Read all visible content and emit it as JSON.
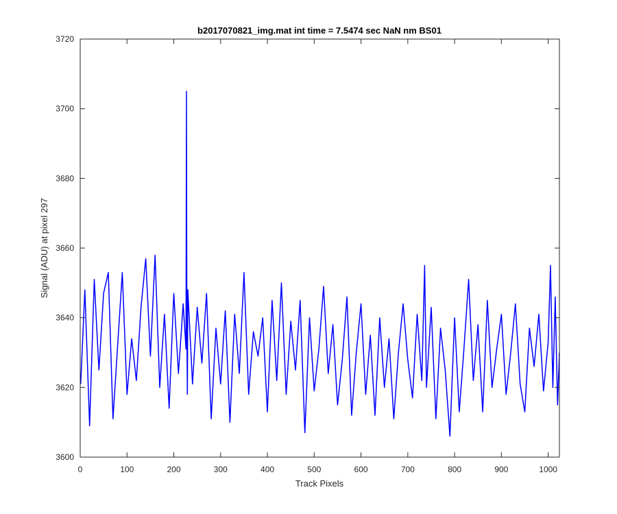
{
  "chart_data": {
    "type": "line",
    "title": "b2017070821_img.mat int time = 7.5474 sec  NaN nm BS01",
    "xlabel": "Track Pixels",
    "ylabel": "Signal (ADU) at pixel 297",
    "xlim": [
      0,
      1024
    ],
    "ylim": [
      3600,
      3720
    ],
    "xticks": [
      0,
      100,
      200,
      300,
      400,
      500,
      600,
      700,
      800,
      900,
      1000
    ],
    "yticks": [
      3600,
      3620,
      3640,
      3660,
      3680,
      3700,
      3720
    ],
    "grid": false,
    "legend": "none",
    "series": [
      {
        "color": "#0000ff",
        "x": [
          1,
          10,
          20,
          30,
          40,
          50,
          60,
          70,
          80,
          90,
          100,
          110,
          120,
          130,
          140,
          150,
          160,
          170,
          180,
          190,
          200,
          210,
          220,
          226,
          227,
          228,
          229,
          230,
          240,
          250,
          260,
          270,
          280,
          290,
          300,
          310,
          320,
          330,
          340,
          350,
          360,
          370,
          380,
          390,
          400,
          410,
          420,
          430,
          440,
          450,
          460,
          470,
          480,
          490,
          500,
          510,
          520,
          530,
          540,
          550,
          560,
          570,
          580,
          590,
          600,
          610,
          620,
          630,
          640,
          650,
          660,
          670,
          680,
          690,
          700,
          710,
          720,
          730,
          736,
          740,
          750,
          760,
          770,
          780,
          790,
          800,
          810,
          820,
          830,
          840,
          850,
          860,
          870,
          880,
          890,
          900,
          910,
          920,
          930,
          940,
          950,
          960,
          970,
          980,
          990,
          1000,
          1005,
          1010,
          1015,
          1020,
          1024
        ],
        "values": [
          3621,
          3648,
          3609,
          3651,
          3625,
          3647,
          3653,
          3611,
          3632,
          3653,
          3618,
          3634,
          3622,
          3643,
          3657,
          3629,
          3658,
          3620,
          3641,
          3614,
          3647,
          3624,
          3644,
          3631,
          3705,
          3636,
          3618,
          3648,
          3621,
          3643,
          3627,
          3647,
          3611,
          3637,
          3621,
          3642,
          3610,
          3641,
          3624,
          3653,
          3618,
          3636,
          3629,
          3640,
          3613,
          3645,
          3622,
          3650,
          3618,
          3639,
          3625,
          3645,
          3607,
          3640,
          3619,
          3631,
          3649,
          3624,
          3638,
          3615,
          3628,
          3646,
          3612,
          3630,
          3644,
          3618,
          3635,
          3612,
          3640,
          3620,
          3634,
          3611,
          3630,
          3644,
          3628,
          3617,
          3641,
          3622,
          3655,
          3620,
          3643,
          3611,
          3637,
          3625,
          3606,
          3640,
          3613,
          3631,
          3651,
          3622,
          3638,
          3613,
          3645,
          3620,
          3631,
          3641,
          3618,
          3630,
          3644,
          3621,
          3613,
          3637,
          3626,
          3641,
          3619,
          3633,
          3655,
          3620,
          3646,
          3615,
          3630
        ]
      }
    ]
  }
}
